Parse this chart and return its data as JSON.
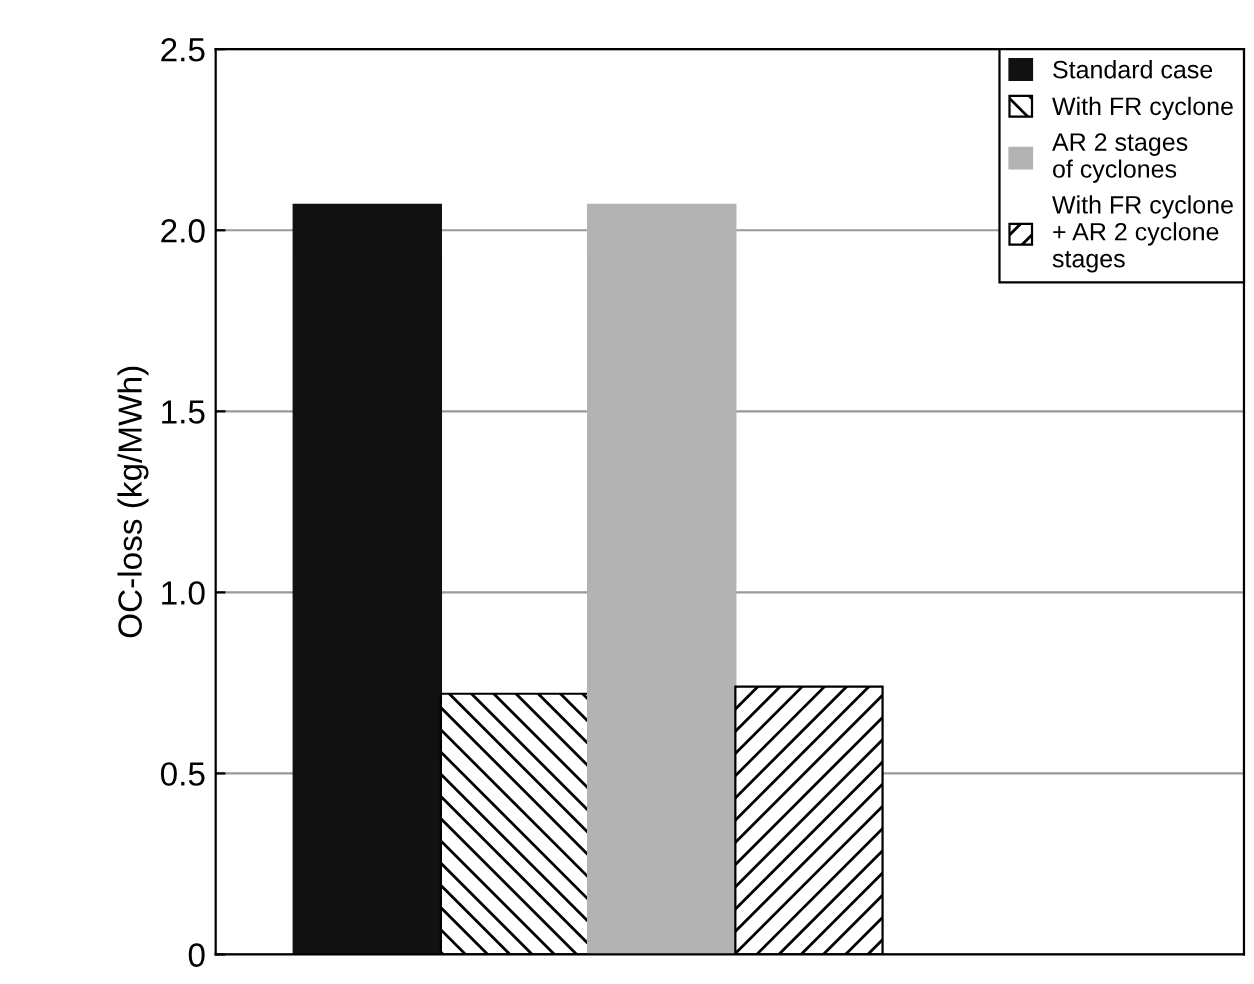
{
  "chart_data": {
    "type": "bar",
    "ylabel": "OC-loss (kg/MWh)",
    "categories": [
      null
    ],
    "series": [
      {
        "name": "Standard case",
        "color": "#111111",
        "values": [
          2.07
        ]
      },
      {
        "name": "With FR cyclone",
        "color": "#000000",
        "values": [
          0.72
        ]
      },
      {
        "name": "AR 2 stages\nof cyclones",
        "color": "#b3b3b3",
        "values": [
          2.07
        ]
      },
      {
        "name": "With FR cyclone\n+ AR 2 cyclone\nstages",
        "color": "#000000",
        "values": [
          0.74
        ]
      }
    ],
    "ylim": [
      0,
      2.5
    ],
    "yticks": [
      0,
      0.5,
      {
        "value": 1,
        "label": "1.0"
      },
      1.5,
      {
        "value": 2,
        "label": "2.0"
      },
      2.5
    ],
    "grid": "y",
    "legend": "top right"
  }
}
